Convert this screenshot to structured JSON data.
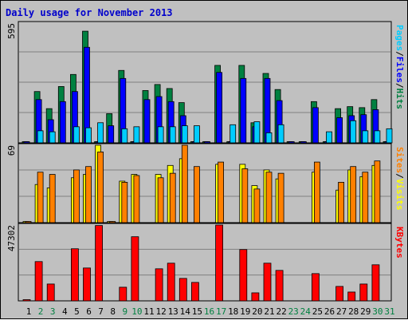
{
  "title": "Daily usage for November 2013",
  "colors": {
    "background": "#c0c0c0",
    "panel_border": "#000000",
    "gridline": "#808080",
    "weekday_label": "#000000",
    "weekend_label": "#008040",
    "title": "#0000cc"
  },
  "chart_data": [
    {
      "type": "bar",
      "panel": "top",
      "categories": [
        "1",
        "2",
        "3",
        "4",
        "5",
        "6",
        "7",
        "8",
        "9",
        "10",
        "11",
        "12",
        "13",
        "14",
        "15",
        "16",
        "17",
        "18",
        "19",
        "20",
        "21",
        "22",
        "23",
        "24",
        "25",
        "26",
        "27",
        "28",
        "29",
        "30",
        "31"
      ],
      "weekend_days": [
        "2",
        "3",
        "9",
        "10",
        "16",
        "17",
        "23",
        "24",
        "30",
        "31"
      ],
      "ymax_label": "595",
      "ylim": [
        0,
        595
      ],
      "right_label_parts": [
        {
          "text": "Pages",
          "color": "#00ccff"
        },
        {
          "text": "/",
          "color": "#000000"
        },
        {
          "text": "Files",
          "color": "#0000ff"
        },
        {
          "text": "/",
          "color": "#000000"
        },
        {
          "text": "Hits",
          "color": "#008040"
        }
      ],
      "series": [
        {
          "color": "#008040",
          "values": [
            5,
            255,
            170,
            280,
            340,
            555,
            5,
            145,
            360,
            5,
            260,
            290,
            270,
            200,
            5,
            5,
            385,
            5,
            385,
            100,
            345,
            265,
            5,
            5,
            205,
            5,
            170,
            180,
            175,
            215,
            5
          ]
        },
        {
          "color": "#0000ff",
          "values": [
            5,
            215,
            115,
            205,
            255,
            475,
            5,
            85,
            320,
            5,
            215,
            230,
            205,
            135,
            5,
            5,
            350,
            5,
            320,
            80,
            320,
            210,
            5,
            5,
            175,
            5,
            125,
            135,
            140,
            165,
            5
          ]
        },
        {
          "color": "#00ccff",
          "values": [
            0,
            60,
            55,
            0,
            80,
            75,
            100,
            0,
            70,
            80,
            0,
            80,
            80,
            85,
            85,
            0,
            0,
            90,
            0,
            105,
            50,
            90,
            0,
            0,
            0,
            55,
            0,
            110,
            60,
            60,
            70
          ]
        }
      ]
    },
    {
      "type": "bar",
      "panel": "middle",
      "categories": [
        "1",
        "2",
        "3",
        "4",
        "5",
        "6",
        "7",
        "8",
        "9",
        "10",
        "11",
        "12",
        "13",
        "14",
        "15",
        "16",
        "17",
        "18",
        "19",
        "20",
        "21",
        "22",
        "23",
        "24",
        "25",
        "26",
        "27",
        "28",
        "29",
        "30",
        "31"
      ],
      "ymax_label": "69",
      "ylim": [
        0,
        69
      ],
      "right_label_parts": [
        {
          "text": "Sites",
          "color": "#ff8000"
        },
        {
          "text": "/",
          "color": "#000000"
        },
        {
          "text": "Visits",
          "color": "#ffff00"
        }
      ],
      "series": [
        {
          "color": "#ffff00",
          "values": [
            1,
            34,
            31,
            0,
            40,
            43,
            70,
            1,
            37,
            43,
            0,
            43,
            51,
            57,
            0,
            0,
            52,
            0,
            52,
            33,
            47,
            39,
            0,
            0,
            45,
            0,
            29,
            47,
            41,
            51,
            0
          ]
        },
        {
          "color": "#ff8000",
          "values": [
            1,
            45,
            43,
            0,
            47,
            50,
            63,
            1,
            36,
            42,
            0,
            40,
            44,
            69,
            50,
            0,
            54,
            0,
            48,
            30,
            45,
            44,
            0,
            0,
            54,
            0,
            36,
            50,
            45,
            55,
            0
          ]
        }
      ]
    },
    {
      "type": "bar",
      "panel": "bottom",
      "categories": [
        "1",
        "2",
        "3",
        "4",
        "5",
        "6",
        "7",
        "8",
        "9",
        "10",
        "11",
        "12",
        "13",
        "14",
        "15",
        "16",
        "17",
        "18",
        "19",
        "20",
        "21",
        "22",
        "23",
        "24",
        "25",
        "26",
        "27",
        "28",
        "29",
        "30",
        "31"
      ],
      "ymax_label": "47302",
      "ylim": [
        0,
        47302
      ],
      "right_label_parts": [
        {
          "text": "KBytes",
          "color": "#ff0000"
        }
      ],
      "series": [
        {
          "color": "#ff0000",
          "values": [
            600,
            24500,
            10500,
            0,
            32500,
            20500,
            47000,
            0,
            8500,
            40000,
            0,
            20000,
            23500,
            14000,
            11500,
            0,
            48000,
            0,
            32000,
            5000,
            23500,
            19000,
            0,
            0,
            17000,
            0,
            9000,
            5500,
            10500,
            22500,
            0
          ]
        }
      ]
    }
  ]
}
